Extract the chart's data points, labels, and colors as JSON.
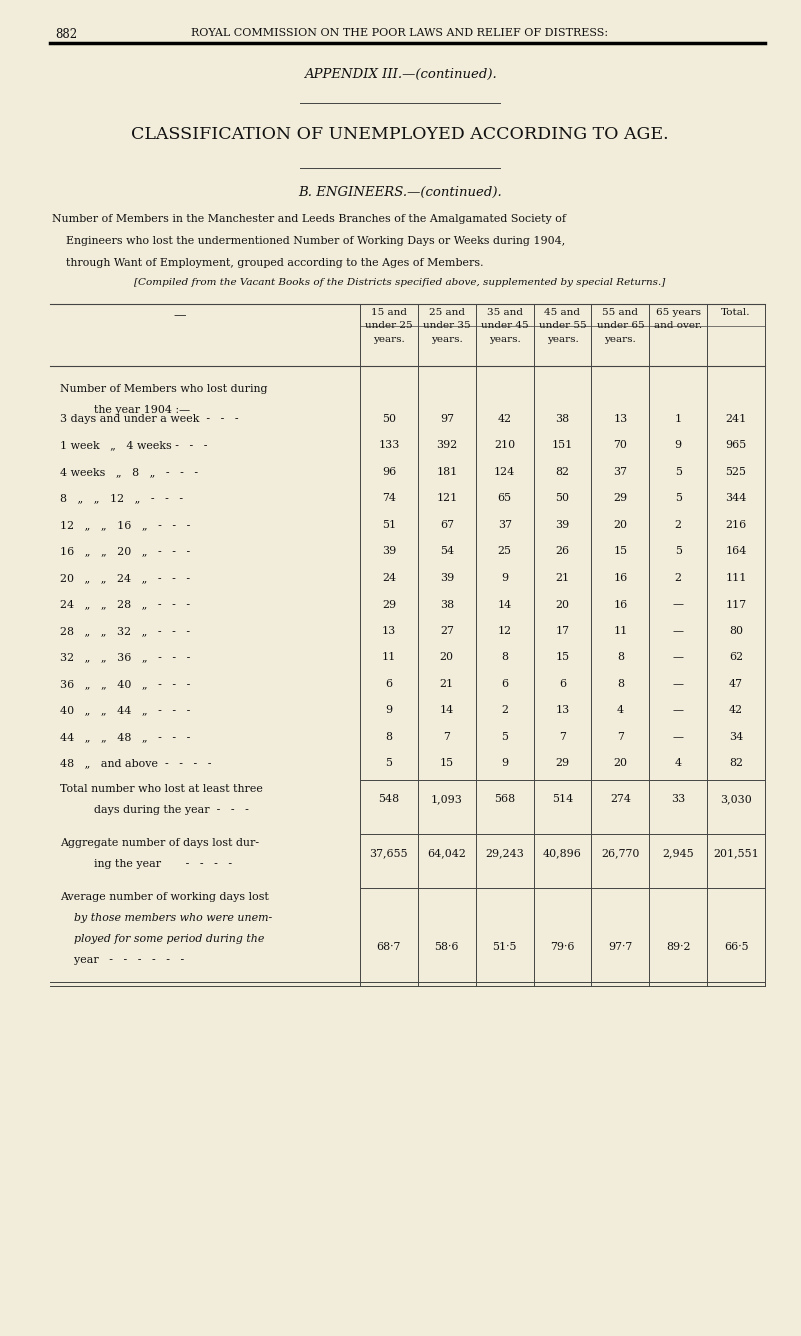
{
  "page_num": "882",
  "header": "ROYAL COMMISSION ON THE POOR LAWS AND RELIEF OF DISTRESS:",
  "appendix_title": "APPENDIX III.—(continued).",
  "main_title": "CLASSIFICATION OF UNEMPLOYED ACCORDING TO AGE.",
  "section_title": "B. ENGINEERS.—(continued).",
  "p1_line1": "Number of Members in the Manchester and Leeds Branches of the Amalgamated Society of",
  "p1_line2": "    Engineers who lost the undermentioned Number of Working Days or Weeks during 1904,",
  "p1_line3": "    through Want of Employment, grouped according to the Ages of Members.",
  "footnote": "[Compiled from the Vacant Books of the Districts specified above, supplemented by special Returns.]",
  "col_headers": [
    "15 and\nunder 25\nyears.",
    "25 and\nunder 35\nyears.",
    "35 and\nunder 45\nyears.",
    "45 and\nunder 55\nyears.",
    "55 and\nunder 65\nyears.",
    "65 years\nand over.",
    "Total."
  ],
  "row_intro_1": "Number of Members who lost during",
  "row_intro_2": "    the year 1904 :—",
  "row_labels": [
    "3 days and under a week  -   -   -",
    "1 week   „   4 weeks -   -   -",
    "4 weeks   „   8   „   -   -   -",
    "8   „   „   12   „   -   -   -",
    "12   „   „   16   „   -   -   -",
    "16   „   „   20   „   -   -   -",
    "20   „   „   24   „   -   -   -",
    "24   „   „   28   „   -   -   -",
    "28   „   „   32   „   -   -   -",
    "32   „   „   36   „   -   -   -",
    "36   „   „   40   „   -   -   -",
    "40   „   „   44   „   -   -   -",
    "44   „   „   48   „   -   -   -",
    "48   „   and above  -   -   -   -"
  ],
  "row_values": [
    [
      "50",
      "97",
      "42",
      "38",
      "13",
      "1",
      "241"
    ],
    [
      "133",
      "392",
      "210",
      "151",
      "70",
      "9",
      "965"
    ],
    [
      "96",
      "181",
      "124",
      "82",
      "37",
      "5",
      "525"
    ],
    [
      "74",
      "121",
      "65",
      "50",
      "29",
      "5",
      "344"
    ],
    [
      "51",
      "67",
      "37",
      "39",
      "20",
      "2",
      "216"
    ],
    [
      "39",
      "54",
      "25",
      "26",
      "15",
      "5",
      "164"
    ],
    [
      "24",
      "39",
      "9",
      "21",
      "16",
      "2",
      "111"
    ],
    [
      "29",
      "38",
      "14",
      "20",
      "16",
      "—",
      "117"
    ],
    [
      "13",
      "27",
      "12",
      "17",
      "11",
      "—",
      "80"
    ],
    [
      "11",
      "20",
      "8",
      "15",
      "8",
      "—",
      "62"
    ],
    [
      "6",
      "21",
      "6",
      "6",
      "8",
      "—",
      "47"
    ],
    [
      "9",
      "14",
      "2",
      "13",
      "4",
      "—",
      "42"
    ],
    [
      "8",
      "7",
      "5",
      "7",
      "7",
      "—",
      "34"
    ],
    [
      "5",
      "15",
      "9",
      "29",
      "20",
      "4",
      "82"
    ]
  ],
  "total_label_1": "Total number who lost at least three",
  "total_label_2": "    days during the year  -   -   -",
  "total_values": [
    "548",
    "1,093",
    "568",
    "514",
    "274",
    "33",
    "3,030"
  ],
  "agg_label_1": "Aggregate number of days lost dur-",
  "agg_label_2": "    ing the year       -   -   -   -",
  "agg_values": [
    "37,655",
    "64,042",
    "29,243",
    "40,896",
    "26,770",
    "2,945",
    "201,551"
  ],
  "avg_label_1": "Average number of working days lost",
  "avg_label_2": "    by those members who were unem-",
  "avg_label_3": "    ployed for some period during the",
  "avg_label_4": "    year   -   -   -   -   -   -",
  "avg_values": [
    "68·7",
    "58·6",
    "51·5",
    "79·6",
    "97·7",
    "89·2",
    "66·5"
  ],
  "bg_color": "#f2edda",
  "text_color": "#111111",
  "line_color": "#444444"
}
